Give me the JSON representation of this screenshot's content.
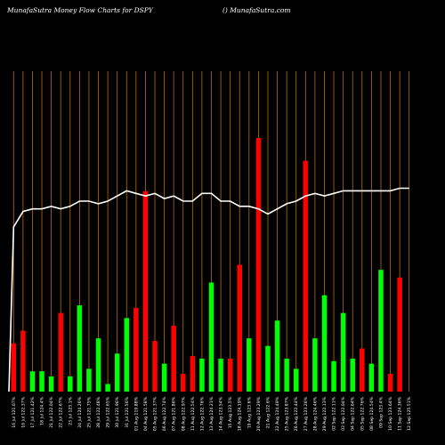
{
  "header": {
    "title_left": "MunafaSutra  Money Flow  Charts for DSPY",
    "title_right": "() MunafaSutra.com"
  },
  "colors": {
    "background": "#000000",
    "grid": "#b86f00",
    "up": "#00ff00",
    "down": "#ff0000",
    "line": "#ffffff"
  },
  "chart_data": {
    "type": "bar",
    "title": "MunafaSutra  Money Flow  Charts for DSPY",
    "xlabel": "",
    "ylabel": "",
    "ylim": [
      0,
      100
    ],
    "grid": true,
    "categories": [
      "16 Jul 121.07%",
      "16 Jul 122.37%",
      "17 Jul 121.42%",
      "18 Jul 124.4%",
      "21 Jul 122.04%",
      "22 Jul 122.67%",
      "23 Jul 123.1%",
      "24 Jul 124.26%",
      "25 Jul 121.75%",
      "28 Jul 122.48%",
      "29 Jul 122.65%",
      "30 Jul 121.96%",
      "31 Jul 121.56%",
      "01 Aug 119.88%",
      "04 Aug 121.58%",
      "05 Aug 121.37%",
      "06 Aug 122.74%",
      "07 Aug 121.86%",
      "08 Aug 122.97%",
      "11 Aug 122.54%",
      "12 Aug 122.76%",
      "13 Aug 124.21%",
      "14 Aug 123.54%",
      "15 Aug 123.5%",
      "18 Aug 124.19%",
      "19 Aug 123.6%",
      "20 Aug 123.29%",
      "21 Aug 122.6%",
      "22 Aug 124.49%",
      "25 Aug 123.87%",
      "26 Aug 122.44%",
      "27 Aug 123.26%",
      "28 Aug 124.46%",
      "29 Aug 122.13%",
      "02 Sep 122.11%",
      "03 Sep 122.04%",
      "04 Sep 122.64%",
      "05 Sep 122.76%",
      "08 Sep 124.54%",
      "09 Sep 123.4%",
      "10 Sep 123.64%",
      "11 Sep 124.36%",
      "12 Sep 125.51%"
    ],
    "values": [
      19,
      24,
      8,
      8,
      6,
      31,
      6,
      34,
      9,
      21,
      3,
      15,
      29,
      33,
      79,
      20,
      11,
      26,
      7,
      14,
      13,
      43,
      13,
      13,
      50,
      21,
      100,
      18,
      28,
      13,
      9,
      91,
      21,
      38,
      12,
      31,
      13,
      17,
      11,
      48,
      7,
      45,
      0
    ],
    "direction": [
      "down",
      "down",
      "up",
      "up",
      "up",
      "down",
      "up",
      "up",
      "up",
      "up",
      "up",
      "up",
      "up",
      "down",
      "down",
      "down",
      "up",
      "down",
      "down",
      "down",
      "up",
      "up",
      "up",
      "down",
      "down",
      "up",
      "down",
      "up",
      "up",
      "up",
      "up",
      "down",
      "up",
      "up",
      "up",
      "up",
      "up",
      "down",
      "up",
      "up",
      "down",
      "down",
      "up"
    ],
    "price_line": [
      50,
      56,
      57,
      57,
      58,
      57,
      58,
      60,
      60,
      59,
      60,
      62,
      64,
      63,
      62,
      63,
      61,
      62,
      60,
      60,
      63,
      63,
      60,
      60,
      58,
      58,
      57,
      55,
      57,
      59,
      60,
      62,
      63,
      62,
      63,
      64,
      64,
      64,
      64,
      64,
      64,
      65,
      65
    ]
  }
}
